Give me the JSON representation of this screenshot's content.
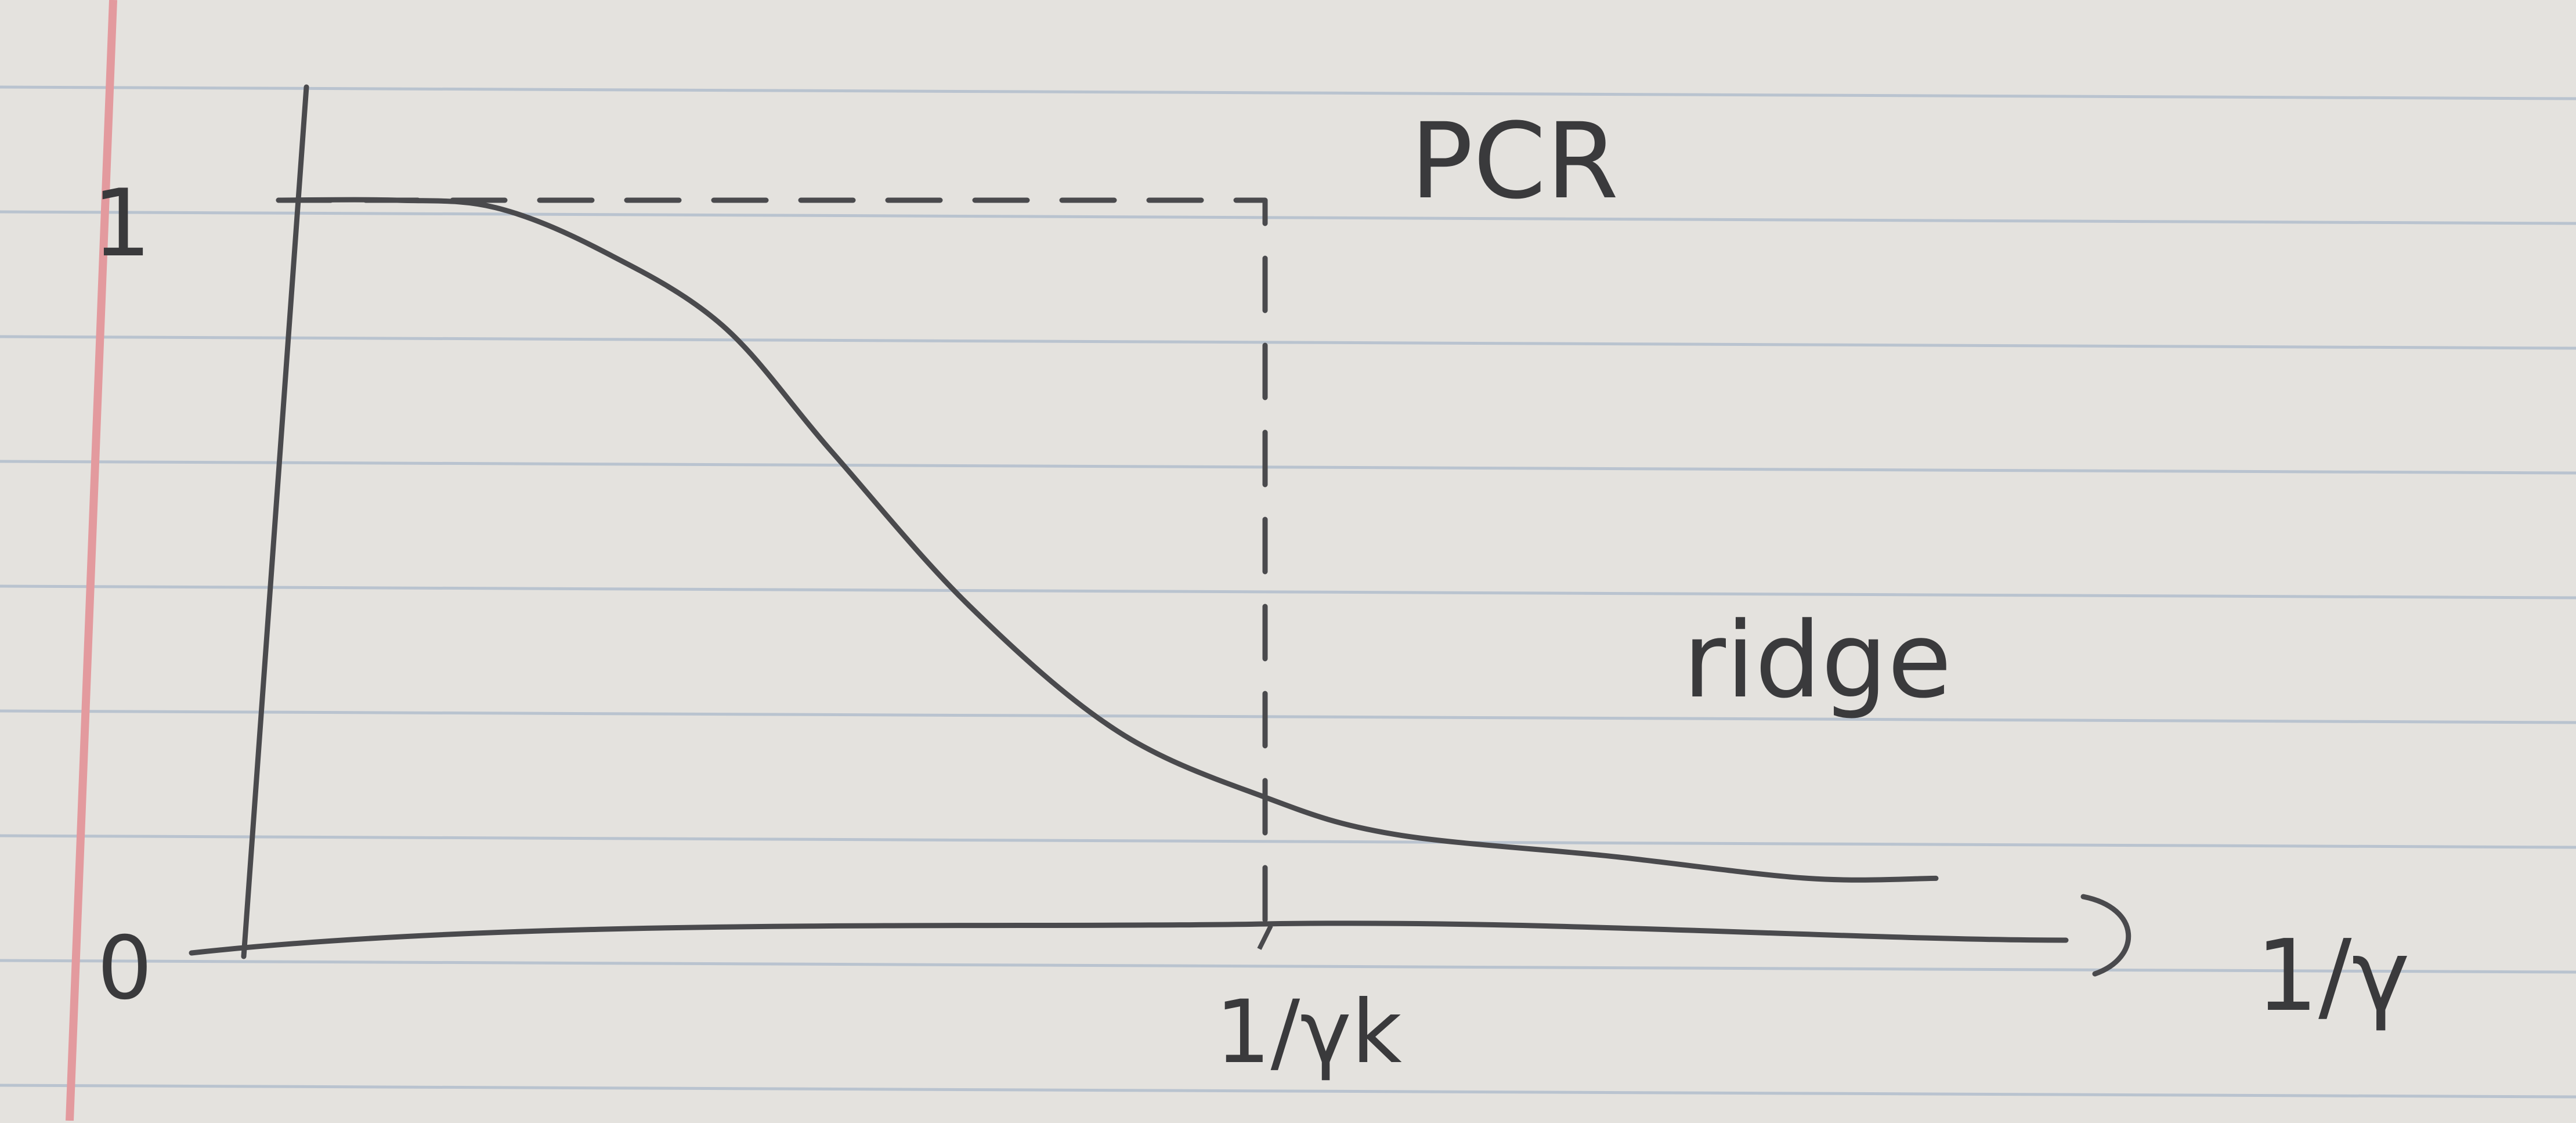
{
  "colors": {
    "paper": "#e4e2de",
    "rule_line": "#b9c3cf",
    "margin_line": "#e39a9e",
    "pencil": "#4a4a4d"
  },
  "chart_data": {
    "type": "line",
    "medium": "pencil sketch on ruled notebook paper",
    "x_axis_label": "1/γ",
    "y_ticks": [
      "1",
      "0"
    ],
    "x_ticks": [
      {
        "label": "1/γk",
        "value": 1.0
      }
    ],
    "xlim": [
      0,
      2.0
    ],
    "ylim": [
      0,
      1
    ],
    "grid": false,
    "series": [
      {
        "name": "PCR",
        "style": "dashed",
        "shape": "step",
        "x": [
          0,
          1.0,
          1.0
        ],
        "y": [
          1,
          1,
          0
        ]
      },
      {
        "name": "ridge",
        "style": "solid",
        "shape": "smooth decreasing curve",
        "x": [
          0,
          0.12,
          0.22,
          0.33,
          0.45,
          0.56,
          0.7,
          0.85,
          1.0,
          1.13,
          1.35,
          1.55,
          1.68
        ],
        "y": [
          1.0,
          1.0,
          0.99,
          0.93,
          0.83,
          0.66,
          0.45,
          0.28,
          0.19,
          0.14,
          0.11,
          0.08,
          0.08
        ]
      }
    ],
    "annotations": [
      {
        "text": "PCR",
        "series": "PCR"
      },
      {
        "text": "ridge",
        "series": "ridge"
      }
    ]
  }
}
